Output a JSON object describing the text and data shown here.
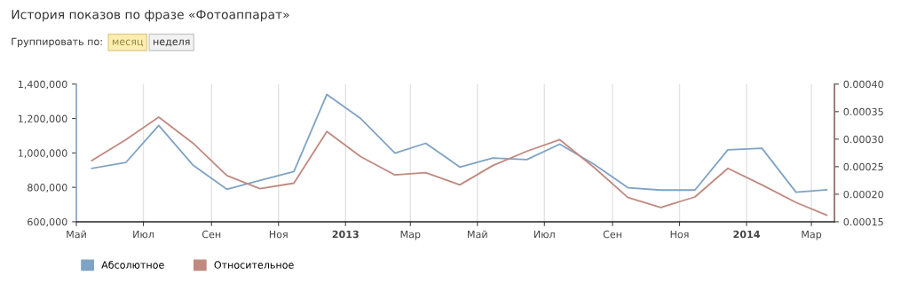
{
  "chart_data": {
    "type": "line",
    "title": "История показов по фразе «Фотоаппарат»",
    "annotations": [
      "Группировать по:",
      "месяц",
      "неделя"
    ],
    "x": [
      "2012-05-15",
      "2012-06-15",
      "2012-07-15",
      "2012-08-15",
      "2012-09-15",
      "2012-10-15",
      "2012-11-15",
      "2012-12-15",
      "2013-01-15",
      "2013-02-15",
      "2013-03-15",
      "2013-04-15",
      "2013-05-15",
      "2013-06-15",
      "2013-07-15",
      "2013-08-15",
      "2013-09-15",
      "2013-10-15",
      "2013-11-15",
      "2013-12-15",
      "2014-01-15",
      "2014-02-15",
      "2014-03-15"
    ],
    "series": [
      {
        "name": "Абсолютное",
        "color": "#7fa3c4",
        "values": [
          910000,
          944000,
          1160000,
          930000,
          789000,
          840000,
          892000,
          1340000,
          1199000,
          999000,
          1056000,
          918000,
          970000,
          961000,
          1051000,
          935000,
          798000,
          784000,
          784000,
          1018000,
          1027000,
          772000,
          786000
        ]
      },
      {
        "name": "Относительное",
        "color": "#c08a80",
        "axis": "y2",
        "values": [
          0.000261,
          0.000299,
          0.00034,
          0.000293,
          0.000234,
          0.00021,
          0.00022,
          0.000314,
          0.000268,
          0.000235,
          0.000239,
          0.000217,
          0.000252,
          0.000278,
          0.000299,
          0.000249,
          0.000194,
          0.000176,
          0.000195,
          0.000247,
          0.000217,
          0.000185,
          0.000162
        ]
      }
    ],
    "xlim": [
      "2012-05-01",
      "2014-03-22"
    ],
    "xticks": [
      {
        "value": "2012-05-01",
        "label": "Май"
      },
      {
        "value": "2012-07-01",
        "label": "Июл"
      },
      {
        "value": "2012-09-01",
        "label": "Сен"
      },
      {
        "value": "2012-11-01",
        "label": "Ноя"
      },
      {
        "value": "2013-01-01",
        "label": "2013"
      },
      {
        "value": "2013-03-01",
        "label": "Мар"
      },
      {
        "value": "2013-05-01",
        "label": "Май"
      },
      {
        "value": "2013-07-01",
        "label": "Июл"
      },
      {
        "value": "2013-09-01",
        "label": "Сен"
      },
      {
        "value": "2013-11-01",
        "label": "Ноя"
      },
      {
        "value": "2014-01-01",
        "label": "2014"
      },
      {
        "value": "2014-03-01",
        "label": "Мар"
      }
    ],
    "ylim": [
      600000,
      1400000
    ],
    "yticks": [
      {
        "value": 600000,
        "label": "600,000"
      },
      {
        "value": 800000,
        "label": "800,000"
      },
      {
        "value": 1000000,
        "label": "1,000,000"
      },
      {
        "value": 1200000,
        "label": "1,200,000"
      },
      {
        "value": 1400000,
        "label": "1,400,000"
      }
    ],
    "y2lim": [
      0.00015,
      0.0004
    ],
    "y2ticks": [
      {
        "value": 0.00015,
        "label": "0.00015"
      },
      {
        "value": 0.0002,
        "label": "0.00020"
      },
      {
        "value": 0.00025,
        "label": "0.00025"
      },
      {
        "value": 0.0003,
        "label": "0.00030"
      },
      {
        "value": 0.00035,
        "label": "0.00035"
      },
      {
        "value": 0.0004,
        "label": "0.00040"
      }
    ],
    "grid": "x",
    "legend": "bottom left",
    "marker": "none",
    "line_style": "solid"
  }
}
